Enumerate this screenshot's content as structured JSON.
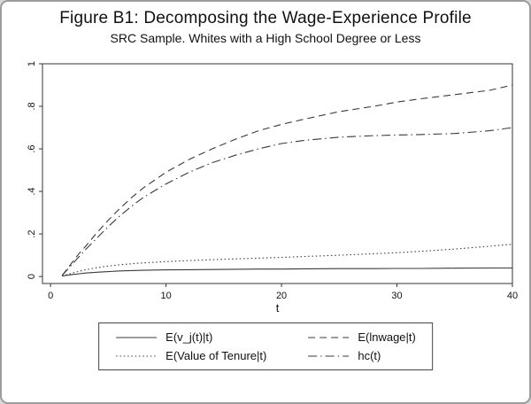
{
  "figure": {
    "title": "Figure B1: Decomposing the Wage-Experience Profile",
    "subtitle": "SRC Sample. Whites with a High School Degree or Less"
  },
  "chart_data": {
    "type": "line",
    "title": "Figure B1: Decomposing the Wage-Experience Profile",
    "subtitle": "SRC Sample. Whites with a High School Degree or Less",
    "grid": false,
    "legend_position": "bottom",
    "line_color": "#3a3a3a",
    "axis_color": "#333333",
    "x_axis": {
      "label": "t",
      "ticks": [
        0,
        10,
        20,
        30,
        40
      ],
      "tick_labels": [
        "0",
        "10",
        "20",
        "30",
        "40"
      ],
      "range": [
        -0.7,
        40
      ]
    },
    "y_axis": {
      "label": "",
      "ticks": [
        0,
        0.2,
        0.4,
        0.6,
        0.8,
        1
      ],
      "tick_labels": [
        "0",
        ".2",
        ".4",
        ".6",
        ".8",
        "1"
      ],
      "range": [
        -0.033,
        1.0
      ]
    },
    "x": [
      1,
      1.5,
      2,
      2.5,
      3,
      4,
      5,
      6,
      7,
      8,
      10,
      12,
      14,
      16,
      18,
      20,
      22,
      25,
      28,
      30,
      32,
      35,
      38,
      40
    ],
    "series": [
      {
        "id": "evj",
        "name": "E(v_j(t)|t)",
        "style": "solid",
        "dash": "",
        "values": [
          0.002,
          0.006,
          0.01,
          0.013,
          0.016,
          0.02,
          0.023,
          0.026,
          0.028,
          0.029,
          0.031,
          0.032,
          0.033,
          0.034,
          0.035,
          0.035,
          0.036,
          0.037,
          0.037,
          0.038,
          0.038,
          0.039,
          0.04,
          0.04
        ]
      },
      {
        "id": "lnwage",
        "name": "E(lnwage|t)",
        "style": "dashed",
        "dash": "8,5",
        "values": [
          0.005,
          0.04,
          0.075,
          0.11,
          0.14,
          0.205,
          0.265,
          0.32,
          0.37,
          0.415,
          0.49,
          0.55,
          0.6,
          0.645,
          0.685,
          0.715,
          0.74,
          0.775,
          0.8,
          0.82,
          0.835,
          0.855,
          0.875,
          0.9
        ]
      },
      {
        "id": "tenure",
        "name": "E(Value of Tenure|t)",
        "style": "dotted",
        "dash": "1.5,2.8",
        "values": [
          0.003,
          0.01,
          0.018,
          0.025,
          0.031,
          0.041,
          0.049,
          0.055,
          0.06,
          0.064,
          0.07,
          0.075,
          0.079,
          0.083,
          0.086,
          0.09,
          0.094,
          0.1,
          0.107,
          0.112,
          0.118,
          0.129,
          0.142,
          0.152
        ]
      },
      {
        "id": "hc",
        "name": "hc(t)",
        "style": "dash-dot",
        "dash": "10,4,1.5,4",
        "values": [
          0.005,
          0.035,
          0.065,
          0.095,
          0.125,
          0.18,
          0.235,
          0.285,
          0.33,
          0.37,
          0.435,
          0.49,
          0.535,
          0.57,
          0.6,
          0.625,
          0.64,
          0.655,
          0.662,
          0.665,
          0.667,
          0.672,
          0.685,
          0.7
        ]
      }
    ]
  }
}
